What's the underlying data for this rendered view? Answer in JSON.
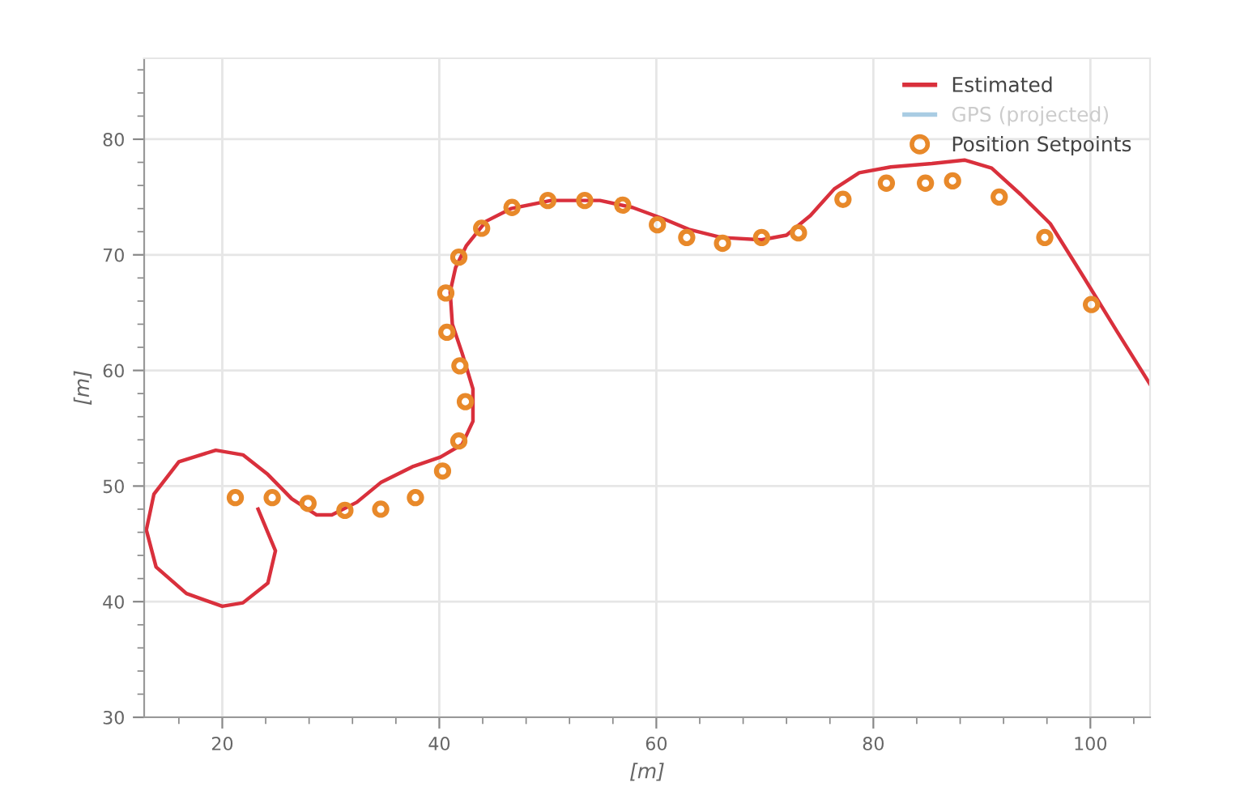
{
  "chart_data": {
    "type": "line",
    "xlabel": "[m]",
    "ylabel": "[m]",
    "xlim": [
      12.8,
      105.5
    ],
    "xticks": [
      20,
      40,
      60,
      80,
      100
    ],
    "ylim": [
      30,
      87
    ],
    "yticks": [
      30,
      40,
      50,
      60,
      70,
      80
    ],
    "grid": true,
    "legend": "top right",
    "series": [
      {
        "name": "Estimated",
        "color": "#d9303c",
        "marker": "none",
        "line_style": "solid",
        "x": [
          23.3,
          24.9,
          24.2,
          21.9,
          20.0,
          16.7,
          13.9,
          13.0,
          13.7,
          16.0,
          19.4,
          21.9,
          24.2,
          26.4,
          28.7,
          30.1,
          32.4,
          34.6,
          37.6,
          40.1,
          42.1,
          43.1,
          43.1,
          42.1,
          41.2,
          41.0,
          41.5,
          42.5,
          44.3,
          46.6,
          50.3,
          54.8,
          57.8,
          60.7,
          63.0,
          66.0,
          69.7,
          72.0,
          74.2,
          76.4,
          78.7,
          81.6,
          85.4,
          88.4,
          90.9,
          93.6,
          96.3,
          99.3,
          102.5,
          105.5
        ],
        "values": [
          48.0,
          44.4,
          41.6,
          39.9,
          39.6,
          40.7,
          43.0,
          46.2,
          49.3,
          52.1,
          53.1,
          52.7,
          51.0,
          48.9,
          47.5,
          47.5,
          48.6,
          50.3,
          51.7,
          52.5,
          53.6,
          55.6,
          58.4,
          61.5,
          64.0,
          66.8,
          68.9,
          70.8,
          72.9,
          74.0,
          74.7,
          74.7,
          74.1,
          73.1,
          72.2,
          71.5,
          71.3,
          71.7,
          73.4,
          75.7,
          77.1,
          77.6,
          77.9,
          78.2,
          77.5,
          75.2,
          72.7,
          68.2,
          63.3,
          58.8
        ]
      },
      {
        "name": "GPS (projected)",
        "color": "#a9cce3",
        "marker": "none",
        "line_style": "solid"
      },
      {
        "name": "Position Setpoints",
        "type": "scatter",
        "color": "#e8892a",
        "marker": "circle",
        "x": [
          21.2,
          24.6,
          27.9,
          31.3,
          34.6,
          37.8,
          40.3,
          41.8,
          42.4,
          41.9,
          40.7,
          40.6,
          41.8,
          43.9,
          46.7,
          50.0,
          53.4,
          56.9,
          60.1,
          62.8,
          66.1,
          69.7,
          73.1,
          77.2,
          81.2,
          84.8,
          87.3,
          91.6,
          95.8,
          100.1
        ],
        "values": [
          49.0,
          49.0,
          48.5,
          47.9,
          48.0,
          49.0,
          51.3,
          53.9,
          57.3,
          60.4,
          63.3,
          66.7,
          69.8,
          72.3,
          74.1,
          74.7,
          74.7,
          74.3,
          72.6,
          71.5,
          71.0,
          71.5,
          71.9,
          74.8,
          76.2,
          76.2,
          76.4,
          75.0,
          71.5,
          65.7
        ]
      }
    ]
  }
}
